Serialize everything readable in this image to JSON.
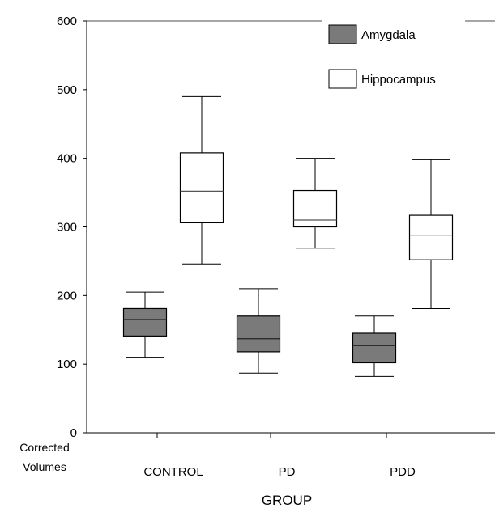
{
  "chart_data": {
    "type": "box",
    "categories": [
      "CONTROL",
      "PD",
      "PDD"
    ],
    "xlabel": "GROUP",
    "ylabel": [
      "Corrected",
      "Volumes"
    ],
    "ylim": [
      0,
      600
    ],
    "yticks": [
      0,
      100,
      200,
      300,
      400,
      500,
      600
    ],
    "legend_position": "top-right",
    "series": [
      {
        "name": "Amygdala",
        "color": "#7a7a7a",
        "boxes": [
          {
            "min": 110,
            "q1": 141,
            "median": 165,
            "q3": 181,
            "max": 205
          },
          {
            "min": 87,
            "q1": 118,
            "median": 137,
            "q3": 170,
            "max": 210
          },
          {
            "min": 82,
            "q1": 102,
            "median": 127,
            "q3": 145,
            "max": 170
          }
        ]
      },
      {
        "name": "Hippocampus",
        "color": "#ffffff",
        "boxes": [
          {
            "min": 246,
            "q1": 306,
            "median": 352,
            "q3": 408,
            "max": 490
          },
          {
            "min": 269,
            "q1": 300,
            "median": 310,
            "q3": 353,
            "max": 400
          },
          {
            "min": 181,
            "q1": 252,
            "median": 288,
            "q3": 317,
            "max": 398
          }
        ]
      }
    ]
  }
}
